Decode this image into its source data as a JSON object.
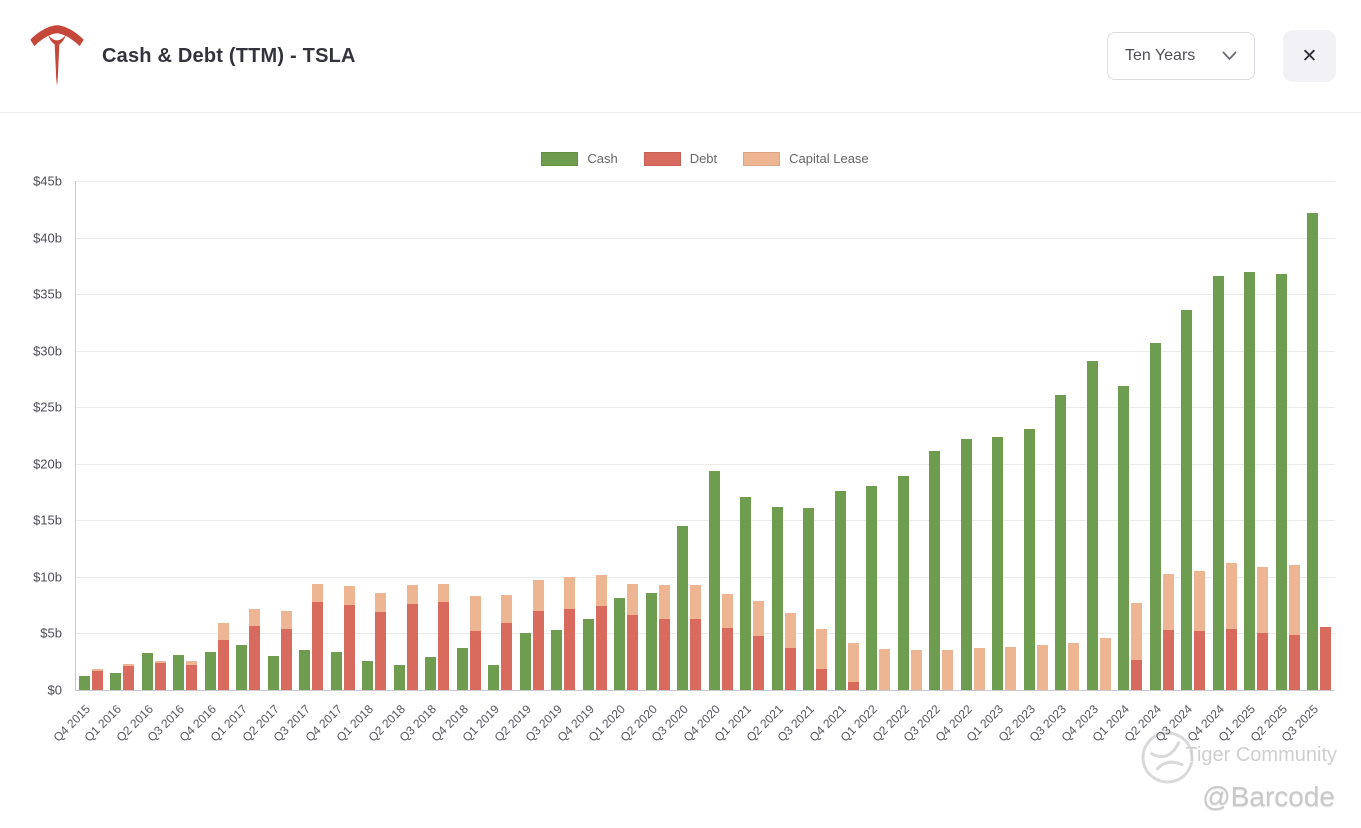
{
  "header": {
    "title": "Cash & Debt (TTM) - TSLA",
    "range_selector": {
      "value": "Ten Years"
    },
    "icons": {
      "close": "✕"
    }
  },
  "chart_data": {
    "type": "bar",
    "title": "Cash & Debt (TTM) - TSLA",
    "ylim": [
      0,
      45
    ],
    "grid": true,
    "legend_position": "top-center",
    "y_tick_labels": [
      "$45b",
      "$40b",
      "$35b",
      "$30b",
      "$25b",
      "$20b",
      "$15b",
      "$10b",
      "$5b",
      "$0"
    ],
    "stacking_note": "Cash is its own column; Debt and Capital Lease are stacked together in the second column of each group",
    "categories": [
      "Q4 2015",
      "Q1 2016",
      "Q2 2016",
      "Q3 2016",
      "Q4 2016",
      "Q1 2017",
      "Q2 2017",
      "Q3 2017",
      "Q4 2017",
      "Q1 2018",
      "Q2 2018",
      "Q3 2018",
      "Q4 2018",
      "Q1 2019",
      "Q2 2019",
      "Q3 2019",
      "Q4 2019",
      "Q1 2020",
      "Q2 2020",
      "Q3 2020",
      "Q4 2020",
      "Q1 2021",
      "Q2 2021",
      "Q3 2021",
      "Q4 2021",
      "Q1 2022",
      "Q2 2022",
      "Q3 2022",
      "Q4 2022",
      "Q1 2023",
      "Q2 2023",
      "Q3 2023",
      "Q4 2023",
      "Q1 2024",
      "Q2 2024",
      "Q3 2024",
      "Q4 2024",
      "Q1 2025",
      "Q2 2025",
      "Q3 2025"
    ],
    "series": [
      {
        "name": "Cash",
        "color": "#6f9d4f",
        "unit": "$b",
        "values": [
          1.2,
          1.5,
          3.3,
          3.1,
          3.4,
          4.0,
          3.0,
          3.5,
          3.4,
          2.6,
          2.2,
          2.9,
          3.7,
          2.2,
          5.0,
          5.3,
          6.3,
          8.1,
          8.6,
          14.5,
          19.4,
          17.1,
          16.2,
          16.1,
          17.6,
          18.0,
          18.9,
          21.1,
          22.2,
          22.4,
          23.1,
          26.1,
          29.1,
          26.9,
          30.7,
          33.6,
          36.6,
          37.0,
          36.8,
          42.2
        ]
      },
      {
        "name": "Debt",
        "color": "#d96b5e",
        "unit": "$b",
        "values": [
          1.7,
          2.1,
          2.4,
          2.2,
          4.4,
          5.7,
          5.4,
          7.8,
          7.5,
          6.9,
          7.6,
          7.8,
          5.2,
          5.9,
          7.0,
          7.2,
          7.4,
          6.6,
          6.3,
          6.3,
          5.5,
          4.8,
          3.7,
          1.9,
          0.7,
          0,
          0,
          0,
          0,
          0,
          0,
          0,
          0,
          2.7,
          5.3,
          5.2,
          5.4,
          5.0,
          4.9,
          5.6
        ]
      },
      {
        "name": "Capital Lease",
        "color": "#eeb592",
        "unit": "$b",
        "values": [
          0.2,
          0.2,
          0.2,
          0.4,
          1.5,
          1.5,
          1.6,
          1.6,
          1.7,
          1.7,
          1.7,
          1.6,
          3.1,
          2.5,
          2.7,
          2.8,
          2.8,
          2.8,
          3.0,
          3.0,
          3.0,
          3.1,
          3.1,
          3.5,
          3.5,
          3.6,
          3.5,
          3.5,
          3.7,
          3.8,
          4.0,
          4.2,
          4.6,
          5.0,
          5.0,
          5.3,
          5.8,
          5.9,
          6.2,
          0
        ]
      }
    ]
  },
  "watermark": {
    "community": "Tiger Community",
    "handle": "@Barcode"
  },
  "colors": {
    "accent_logo": "#c5473a",
    "gridline": "#ebebee",
    "axis": "#c9c9cf"
  }
}
